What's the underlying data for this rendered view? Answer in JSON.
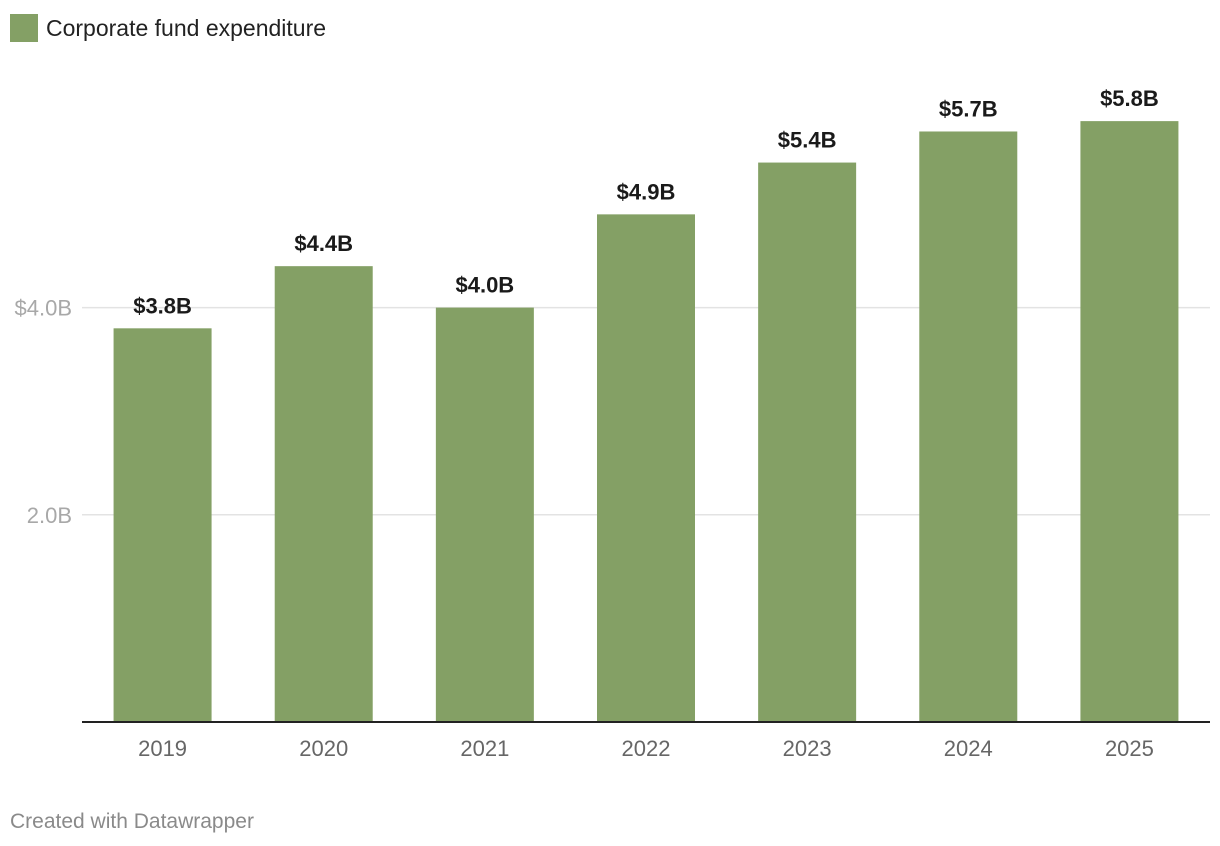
{
  "legend": {
    "label": "Corporate fund expenditure",
    "color": "#84a065"
  },
  "footer": {
    "text": "Created with Datawrapper"
  },
  "chart_data": {
    "type": "bar",
    "title": "",
    "xlabel": "",
    "ylabel": "",
    "categories": [
      "2019",
      "2020",
      "2021",
      "2022",
      "2023",
      "2024",
      "2025"
    ],
    "series": [
      {
        "name": "Corporate fund expenditure",
        "values": [
          3.8,
          4.4,
          4.0,
          4.9,
          5.4,
          5.7,
          5.8
        ],
        "labels": [
          "$3.8B",
          "$4.4B",
          "$4.0B",
          "$4.9B",
          "$5.4B",
          "$5.7B",
          "$5.8B"
        ]
      }
    ],
    "ylim": [
      0,
      6
    ],
    "yticks": [
      {
        "value": 2,
        "label": "2.0B"
      },
      {
        "value": 4,
        "label": "$4.0B"
      }
    ],
    "grid": true,
    "legend_position": "top-left",
    "units": "billions of dollars"
  }
}
